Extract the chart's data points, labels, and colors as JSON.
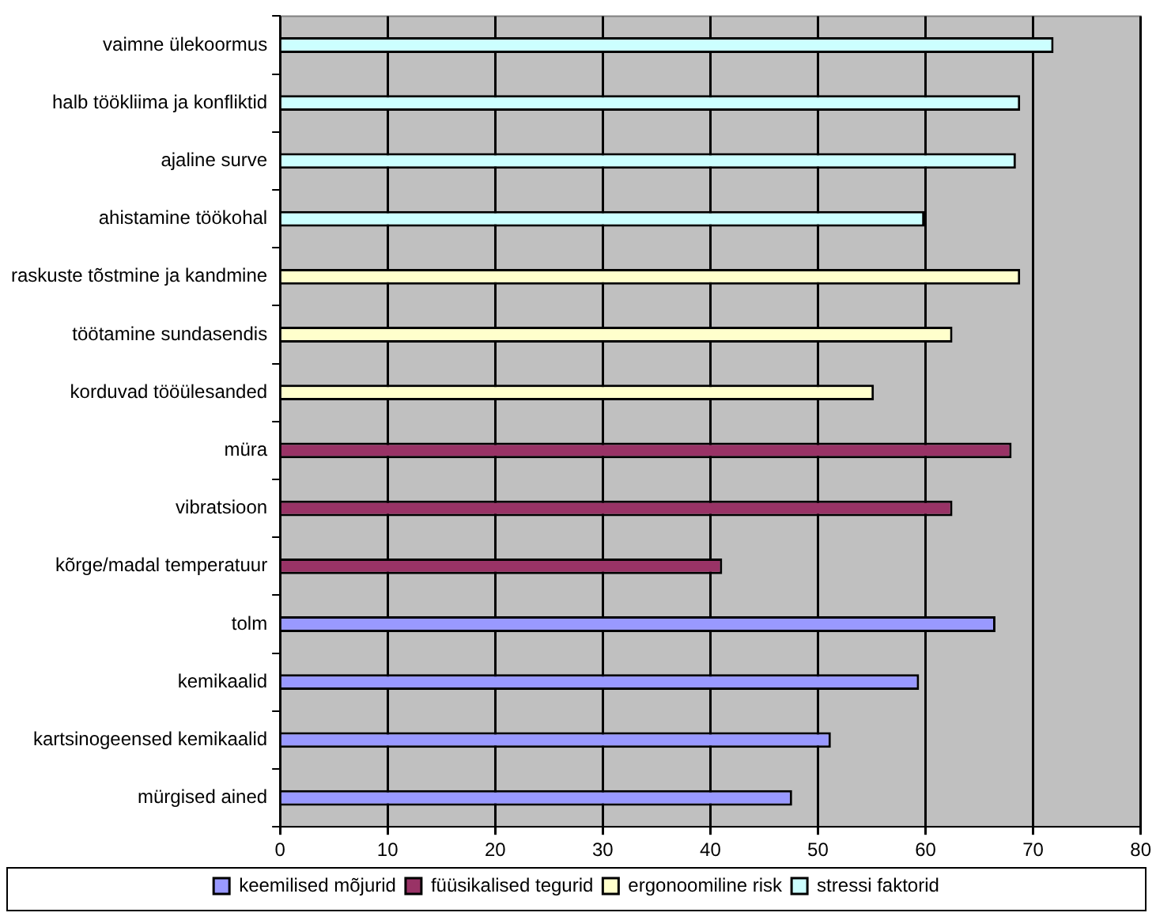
{
  "chart_data": {
    "type": "bar",
    "orientation": "horizontal",
    "categories": [
      "vaimne ülekoormus",
      "halb töökliima ja konfliktid",
      "ajaline surve",
      "ahistamine töökohal",
      "raskuste tõstmine ja kandmine",
      "töötamine sundasendis",
      "korduvad tööülesanded",
      "müra",
      "vibratsioon",
      "kõrge/madal temperatuur",
      "tolm",
      "kemikaalid",
      "kartsinogeensed kemikaalid",
      "mürgised ained"
    ],
    "series": [
      {
        "name": "keemilised mõjurid",
        "color": "#9999ff",
        "values": [
          null,
          null,
          null,
          null,
          null,
          null,
          null,
          null,
          null,
          null,
          66.5,
          59.4,
          51.2,
          47.6
        ]
      },
      {
        "name": "füüsikalised tegurid",
        "color": "#993366",
        "values": [
          null,
          null,
          null,
          null,
          null,
          null,
          null,
          68,
          62.5,
          41.1,
          null,
          null,
          null,
          null
        ]
      },
      {
        "name": "ergonoomiline risk",
        "color": "#ffffcc",
        "values": [
          null,
          null,
          null,
          null,
          68.8,
          62.5,
          55.2,
          null,
          null,
          null,
          null,
          null,
          null,
          null
        ]
      },
      {
        "name": "stressi faktorid",
        "color": "#ccffff",
        "values": [
          71.9,
          68.8,
          68.4,
          59.9,
          null,
          null,
          null,
          null,
          null,
          null,
          null,
          null,
          null,
          null
        ]
      }
    ],
    "xlim": [
      0,
      80
    ],
    "xticks": [
      0,
      10,
      20,
      30,
      40,
      50,
      60,
      70,
      80
    ],
    "grid": "x",
    "legend": "bottom"
  }
}
